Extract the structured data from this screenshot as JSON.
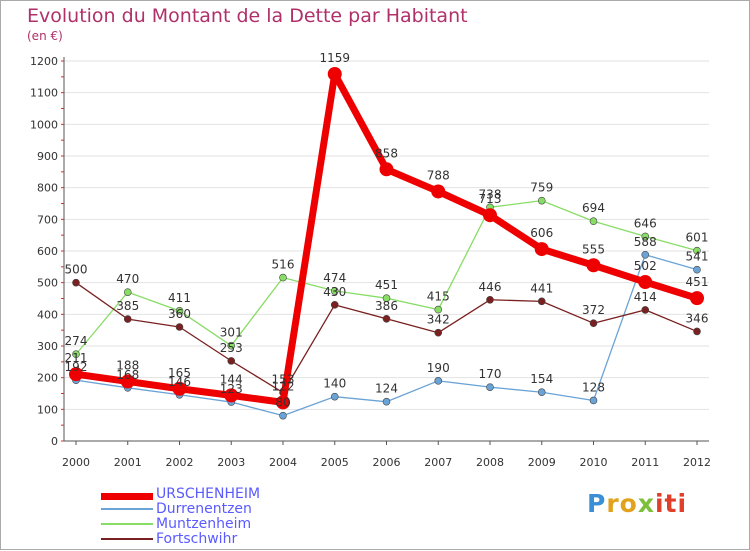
{
  "chart_data": {
    "type": "line",
    "title": "Evolution du Montant de la Dette par Habitant",
    "subtitle": "(en €)",
    "x": [
      "2000",
      "2001",
      "2002",
      "2003",
      "2004",
      "2005",
      "2006",
      "2007",
      "2008",
      "2009",
      "2010",
      "2011",
      "2012"
    ],
    "ylim": [
      0,
      1200
    ],
    "yticks": [
      0,
      100,
      200,
      300,
      400,
      500,
      600,
      700,
      800,
      900,
      1000,
      1100,
      1200
    ],
    "grid": true,
    "legend_position": "bottom-left",
    "series": [
      {
        "name": "URSCHENHEIM",
        "color": "#ee0000",
        "width": 7,
        "marker": 7,
        "values": [
          211,
          188,
          165,
          144,
          122,
          1159,
          858,
          788,
          713,
          606,
          555,
          502,
          451
        ]
      },
      {
        "name": "Durrenentzen",
        "color": "#6aa3d6",
        "width": 1.3,
        "marker": 3.5,
        "values": [
          192,
          168,
          146,
          123,
          80,
          140,
          124,
          190,
          170,
          154,
          128,
          588,
          541
        ]
      },
      {
        "name": "Muntzenheim",
        "color": "#88dd66",
        "width": 1.3,
        "marker": 3.5,
        "values": [
          274,
          470,
          411,
          301,
          516,
          474,
          451,
          415,
          738,
          759,
          694,
          646,
          601
        ]
      },
      {
        "name": "Fortschwihr",
        "color": "#7a2020",
        "width": 1.3,
        "marker": 3.5,
        "values": [
          500,
          385,
          360,
          253,
          153,
          430,
          386,
          342,
          446,
          441,
          372,
          414,
          346
        ]
      }
    ]
  },
  "logo": {
    "text": "Proxiti",
    "parts": [
      "P",
      "ro",
      "x",
      "iti"
    ]
  }
}
